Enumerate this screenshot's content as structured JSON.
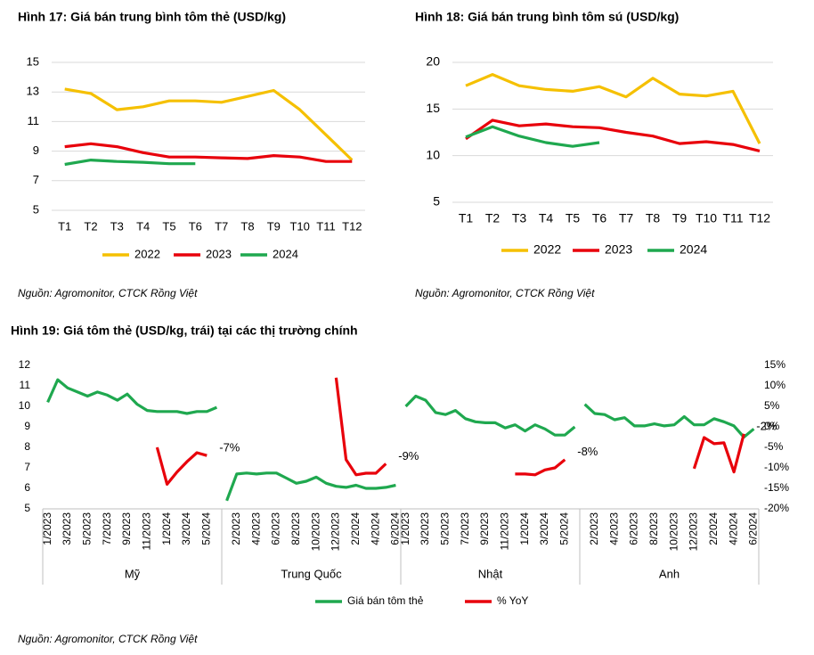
{
  "chart_data": [
    {
      "type": "line",
      "title": "Hình 17: Giá bán trung bình tôm thẻ (USD/kg)",
      "categories": [
        "T1",
        "T2",
        "T3",
        "T4",
        "T5",
        "T6",
        "T7",
        "T8",
        "T9",
        "T10",
        "T11",
        "T12"
      ],
      "series": [
        {
          "name": "2022",
          "color": "#f5c000",
          "values": [
            13.2,
            12.9,
            11.8,
            12.0,
            12.4,
            12.4,
            12.3,
            12.7,
            13.1,
            11.8,
            10.1,
            8.4
          ]
        },
        {
          "name": "2023",
          "color": "#e8000b",
          "values": [
            9.3,
            9.5,
            9.3,
            8.9,
            8.6,
            8.6,
            8.55,
            8.5,
            8.7,
            8.6,
            8.3,
            8.3
          ]
        },
        {
          "name": "2024",
          "color": "#1fa84f",
          "values": [
            8.1,
            8.4,
            8.3,
            8.25,
            8.15,
            8.15,
            null,
            null,
            null,
            null,
            null,
            null
          ]
        }
      ],
      "ylim": [
        5,
        15
      ],
      "yticks": [
        5,
        7,
        9,
        11,
        13,
        15
      ],
      "grid": true,
      "legend": "bottom",
      "source": "Nguồn: Agromonitor, CTCK Rồng Việt"
    },
    {
      "type": "line",
      "title": "Hình 18: Giá bán trung bình tôm sú (USD/kg)",
      "categories": [
        "T1",
        "T2",
        "T3",
        "T4",
        "T5",
        "T6",
        "T7",
        "T8",
        "T9",
        "T10",
        "T11",
        "T12"
      ],
      "series": [
        {
          "name": "2022",
          "color": "#f5c000",
          "values": [
            17.5,
            18.7,
            17.5,
            17.1,
            16.9,
            17.4,
            16.3,
            18.3,
            16.6,
            16.4,
            16.9,
            11.3
          ]
        },
        {
          "name": "2023",
          "color": "#e8000b",
          "values": [
            11.8,
            13.8,
            13.2,
            13.4,
            13.1,
            13.0,
            12.5,
            12.1,
            11.3,
            11.5,
            11.2,
            10.5
          ]
        },
        {
          "name": "2024",
          "color": "#1fa84f",
          "values": [
            12.0,
            13.1,
            12.1,
            11.4,
            11.0,
            11.4,
            null,
            null,
            null,
            null,
            null,
            null
          ]
        }
      ],
      "ylim": [
        5,
        20
      ],
      "yticks": [
        5,
        10,
        15,
        20
      ],
      "grid": true,
      "legend": "bottom",
      "source": "Nguồn: Agromonitor, CTCK Rồng Việt"
    },
    {
      "type": "line",
      "title": "Hình 19:  Giá tôm thẻ (USD/kg, trái) tại các thị trường chính",
      "groups": [
        "Mỹ",
        "Trung Quốc",
        "Nhật",
        "Anh"
      ],
      "categories": [
        "1/2023",
        null,
        "3/2023",
        null,
        "5/2023",
        null,
        "7/2023",
        null,
        "9/2023",
        null,
        "11/2023",
        null,
        "1/2024",
        null,
        "3/2024",
        null,
        "5/2024",
        null,
        null,
        "2/2023",
        null,
        "4/2023",
        null,
        "6/2023",
        null,
        "8/2023",
        null,
        "10/2023",
        null,
        "12/2023",
        null,
        "2/2024",
        null,
        "4/2024",
        null,
        "6/2024",
        "1/2023",
        null,
        "3/2023",
        null,
        "5/2023",
        null,
        "7/2023",
        null,
        "9/2023",
        null,
        "11/2023",
        null,
        "1/2024",
        null,
        "3/2024",
        null,
        "5/2024",
        null,
        null,
        "2/2023",
        null,
        "4/2023",
        null,
        "6/2023",
        null,
        "8/2023",
        null,
        "10/2023",
        null,
        "12/2023",
        null,
        "2/2024",
        null,
        "4/2024",
        null,
        "6/2024"
      ],
      "series": [
        {
          "name": "Giá bán tôm thẻ",
          "color": "#1fa84f",
          "values": [
            10.2,
            11.3,
            10.9,
            10.7,
            10.5,
            10.7,
            10.55,
            10.3,
            10.6,
            10.1,
            9.8,
            9.75,
            9.75,
            9.75,
            9.65,
            9.75,
            9.75,
            9.95,
            5.4,
            6.7,
            6.75,
            6.7,
            6.75,
            6.75,
            6.5,
            6.25,
            6.35,
            6.55,
            6.25,
            6.1,
            6.05,
            6.15,
            6.0,
            6.0,
            6.05,
            6.15,
            10.0,
            10.5,
            10.3,
            9.7,
            9.6,
            9.8,
            9.4,
            9.25,
            9.2,
            9.2,
            8.95,
            9.1,
            8.8,
            9.1,
            8.9,
            8.6,
            8.6,
            9.0,
            10.1,
            9.65,
            9.6,
            9.35,
            9.45,
            9.05,
            9.05,
            9.15,
            9.05,
            9.1,
            9.5,
            9.1,
            9.1,
            9.4,
            9.25,
            9.05,
            8.5,
            8.9
          ]
        },
        {
          "name": "% YoY",
          "color": "#e8000b",
          "axis": "y2",
          "values": [
            null,
            null,
            null,
            null,
            null,
            null,
            null,
            null,
            null,
            null,
            null,
            -5,
            -14,
            -11,
            -8.5,
            -6.3,
            -7,
            null,
            null,
            null,
            null,
            null,
            null,
            null,
            null,
            null,
            null,
            null,
            null,
            12,
            -8,
            -11.7,
            -11.3,
            -11.3,
            -9,
            null,
            null,
            null,
            null,
            null,
            null,
            null,
            null,
            null,
            null,
            null,
            null,
            -11.5,
            -11.5,
            -11.7,
            -10.5,
            -10,
            -8,
            null,
            null,
            null,
            null,
            null,
            null,
            null,
            null,
            null,
            null,
            null,
            null,
            -10.2,
            -2.6,
            -4.1,
            -3.9,
            -11,
            -1.7,
            null
          ]
        }
      ],
      "annotations": [
        "-7%",
        "-9%",
        "-8%",
        "-2%"
      ],
      "ylim": [
        5,
        12
      ],
      "yticks": [
        5,
        6,
        7,
        8,
        9,
        10,
        11,
        12
      ],
      "y2lim": [
        -20,
        15
      ],
      "y2ticks": [
        {
          "value": -20,
          "label": "-20%"
        },
        {
          "value": -15,
          "label": "-15%"
        },
        {
          "value": -10,
          "label": "-10%"
        },
        {
          "value": -5,
          "label": "-5%"
        },
        {
          "value": 0,
          "label": "0%"
        },
        {
          "value": 5,
          "label": "5%"
        },
        {
          "value": 10,
          "label": "10%"
        },
        {
          "value": 15,
          "label": "15%"
        }
      ],
      "grid": false,
      "legend": "bottom",
      "source": "Nguồn: Agromonitor, CTCK Rồng Việt"
    }
  ]
}
